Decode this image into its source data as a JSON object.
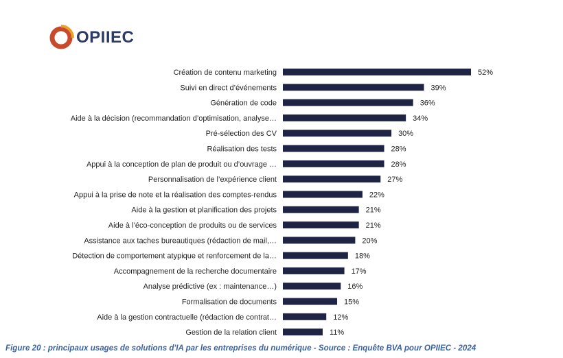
{
  "brand": {
    "logo_text": "OPIIEC",
    "logo_icon": "opiiec-logo-icon",
    "colors": {
      "logo_text": "#2c3a66",
      "logo_ring": "#c94a2a",
      "logo_accent": "#e9a12c"
    }
  },
  "chart_data": {
    "type": "bar",
    "orientation": "horizontal",
    "categories": [
      "Création de contenu marketing",
      "Suivi en direct d’événements",
      "Génération de code",
      "Aide à la décision (recommandation d’optimisation, analyse…",
      "Pré-sélection des CV",
      "Réalisation des tests",
      "Appui à la conception de plan de produit ou d’ouvrage …",
      "Personnalisation de l’expérience client",
      "Appui à la prise de note et la réalisation des comptes-rendus",
      "Aide à la gestion et planification des projets",
      "Aide à l’éco-conception de produits ou de services",
      "Assistance aux taches bureautiques (rédaction de mail,…",
      "Détection de comportement atypique et renforcement de la…",
      "Accompagnement de la recherche documentaire",
      "Analyse prédictive (ex : maintenance…)",
      "Formalisation de documents",
      "Aide à la gestion contractuelle (rédaction de contrat…",
      "Gestion de la relation client"
    ],
    "values": [
      52,
      39,
      36,
      34,
      30,
      28,
      28,
      27,
      22,
      21,
      21,
      20,
      18,
      17,
      16,
      15,
      12,
      11
    ],
    "value_labels": [
      "52%",
      "39%",
      "36%",
      "34%",
      "30%",
      "28%",
      "28%",
      "27%",
      "22%",
      "21%",
      "21%",
      "20%",
      "18%",
      "17%",
      "16%",
      "15%",
      "12%",
      "11%"
    ],
    "unit": "%",
    "xlim": [
      0,
      52
    ],
    "grid": false,
    "legend": "none",
    "bar_color": "#1f2444",
    "label_color": "#222222"
  },
  "caption": {
    "text": "Figure 20 : principaux usages de solutions d'IA par les entreprises du numérique - Source : Enquête BVA pour OPIIEC - 2024",
    "color": "#3a62a6"
  }
}
